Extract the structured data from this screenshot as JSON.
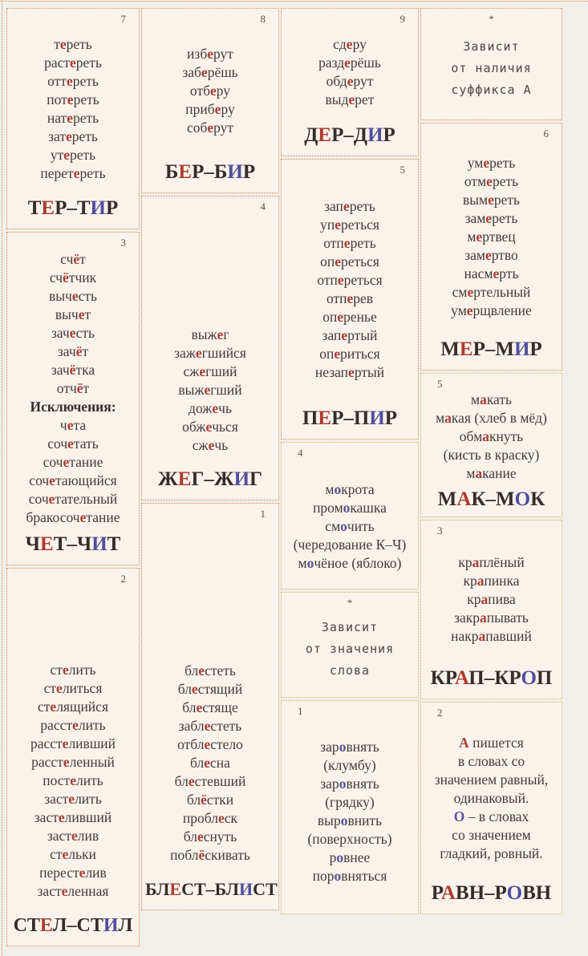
{
  "colors": {
    "page_background": "#f1efe9",
    "card_background": "#faf3ec",
    "body_text": "#403c39",
    "red_letter": "#a93b34",
    "blue_letter": "#55539b",
    "header_text": "#332e2c",
    "border_orange": "#d98a52",
    "border_olive": "#c9ba5c"
  },
  "cards": {
    "ter": {
      "num": "7",
      "num_pos": "right",
      "words": [
        "т[е]реть",
        "раст[е]реть",
        "отт[е]реть",
        "пот[е]реть",
        "нат[е]реть",
        "зат[е]реть",
        "ут[е]реть",
        "перет[е]реть"
      ],
      "header": "Т[Е]Р–Т{И}Р"
    },
    "chet": {
      "num": "3",
      "num_pos": "right",
      "words": [
        "сч[ё]т",
        "сч[ё]тчик",
        "выч[е]сть",
        "выч[е]т",
        "зач[е]сть",
        "зач[ё]т",
        "зач[ё]тка",
        "отч[ё]т",
        "!Исключения:",
        "ч[е]та",
        "соч[е]тать",
        "соч[е]тание",
        "соч[е]тающийся",
        "соч[е]тательный",
        "бракосоч[е]тание"
      ],
      "header": "Ч[Е]Т–Ч{И}Т"
    },
    "stel": {
      "num": "2",
      "num_pos": "right",
      "valign": "bottom",
      "words": [
        "ст[е]лить",
        "ст[е]литься",
        "ст[е]лящийся",
        "расст[е]лить",
        "расст[е]ливший",
        "расст[е]ленный",
        "пост[е]лить",
        "заст[е]лить",
        "заст[е]ливший",
        "заст[е]лив",
        "ст[е]льки",
        "перест[е]лив",
        "заст[е]ленная"
      ],
      "header": "СТ[Е]Л–СТ{И}Л"
    },
    "ber": {
      "num": "8",
      "num_pos": "right",
      "words": [
        "изб[е]рут",
        "заб[е]рёшь",
        "отб[е]ру",
        "приб[е]ру",
        "соб[е]рут"
      ],
      "header": "Б[Е]Р–Б{И}Р"
    },
    "zheg": {
      "num": "4",
      "num_pos": "right",
      "valign": "bottom",
      "words": [
        "выж[е]г",
        "заж[е]гшийся",
        "сж[е]гший",
        "выж[е]гший",
        "дож[е]чь",
        "обж[е]чься",
        "сж[е]чь"
      ],
      "header": "Ж[Е]Г–Ж{И}Г"
    },
    "blest": {
      "num": "1",
      "num_pos": "right",
      "valign": "bottom",
      "words": [
        "бл[е]стеть",
        "бл[е]стящий",
        "бл[е]стяще",
        "забл[е]стеть",
        "отбл[е]стело",
        "бл[е]сна",
        "бл[е]стевший",
        "бл[ё]стки",
        "пробл[е]ск",
        "бл[е]снуть",
        "побл[ё]скивать"
      ],
      "header": "БЛ[Е]СТ–БЛ{И}СТ"
    },
    "der": {
      "num": "9",
      "num_pos": "right",
      "words": [
        "сд[е]ру",
        "разд[е]рёшь",
        "обд[е]рут",
        "выд[е]рет"
      ],
      "header": "Д[Е]Р–Д{И}Р"
    },
    "per": {
      "num": "5",
      "num_pos": "right",
      "words": [
        "зап[е]реть",
        "уп[е]реться",
        "отп[е]реть",
        "оп[е]реться",
        "отп[е]реться",
        "отп[е]рев",
        "оп[е]ренье",
        "зап[е]ртый",
        "оп[е]риться",
        "незап[е]ртый"
      ],
      "header": "П[Е]Р–П{И}Р"
    },
    "mok": {
      "num": "4",
      "num_pos": "left",
      "valign": "bottom",
      "words": [
        "м{о}крота",
        "пром{о}кашка",
        "см{о}чить",
        "(чередование К–Ч)",
        "м{о}чёное (яблоко)"
      ]
    },
    "note_meaning": {
      "num": "*",
      "num_pos": "center",
      "note": [
        "Зависит",
        "от значения",
        "слова"
      ]
    },
    "ravn_words": {
      "num": "1",
      "num_pos": "left",
      "words": [
        "зар{о}внять",
        "(клумбу)",
        "зар{о}внять",
        "(грядку)",
        "выр{о}внить",
        "(поверхность)",
        "р{о}внее",
        "пор{о}вняться"
      ]
    },
    "note_suffix": {
      "num": "*",
      "num_pos": "center",
      "note": [
        "Зависит",
        "от наличия",
        "суффикса А"
      ]
    },
    "mer": {
      "num": "6",
      "num_pos": "right",
      "words": [
        "ум[е]реть",
        "отм[е]реть",
        "вым[е]реть",
        "зам[е]реть",
        "м[е]ртвец",
        "зам[е]ртво",
        "насм[е]рть",
        "см[е]ртельный",
        "ум[е]рщвление"
      ],
      "header": "М[Е]Р–М{И}Р"
    },
    "mak": {
      "num": "5",
      "num_pos": "left",
      "words": [
        "м[а]кать",
        "м[а]кая (хлеб в мёд)",
        "обм[а]кнуть",
        "(кисть в краску)",
        "м[а]кание"
      ],
      "header": "М[А]К–М{О}К"
    },
    "krap": {
      "num": "3",
      "num_pos": "left",
      "words": [
        "кр[а]плёный",
        "кр[а]пинка",
        "кр[а]пива",
        "закр[а]пывать",
        "накр[а]павший"
      ],
      "header": "КР[А]П–КР{О}П"
    },
    "ravn_rule": {
      "num": "2",
      "num_pos": "left",
      "words": [
        "[А] пишется",
        "в словах со",
        "значением равный,",
        "одинаковый.",
        "{О} – в словах",
        "со значением",
        "гладкий, ровный."
      ],
      "header": "Р[А]ВН–Р{О}ВН"
    }
  }
}
